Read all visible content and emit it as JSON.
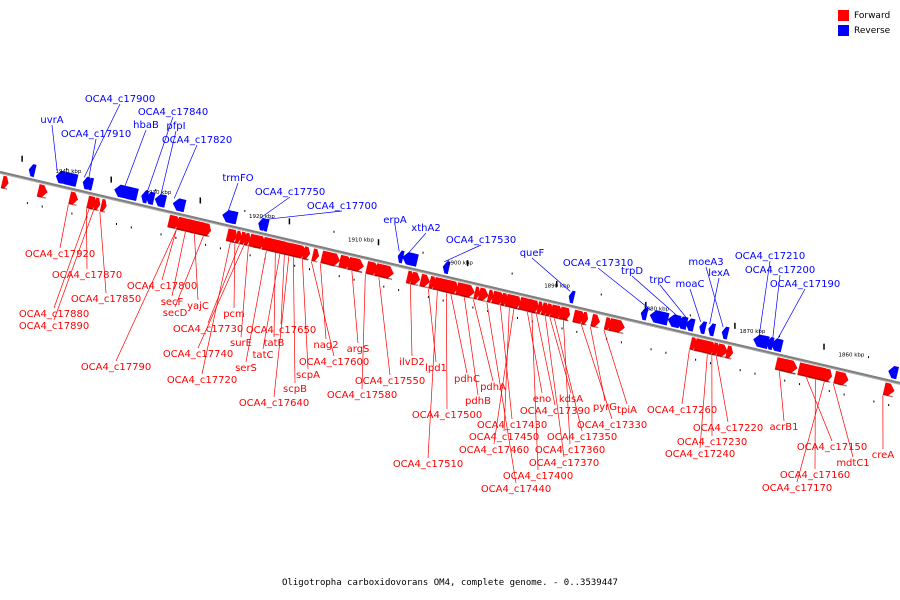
{
  "caption": "Oligotropha carboxidovorans OM4, complete genome. - 0..3539447",
  "legend": [
    {
      "label": "Forward",
      "color": "#ff0000"
    },
    {
      "label": "Reverse",
      "color": "#0000ff"
    }
  ],
  "colors": {
    "forward": "#ff0000",
    "reverse": "#0000ff",
    "backbone": "#7f7f7f",
    "tick": "#000000"
  },
  "kbp_ticks": [
    "1940 kbp",
    "1930 kbp",
    "1920 kbp",
    "1910 kbp",
    "1900 kbp",
    "1890 kbp",
    "1880 kbp",
    "1870 kbp",
    "1860 kbp"
  ],
  "reverse_genes": [
    "uvrA",
    "OCA4_c17900",
    "OCA4_c17910",
    "hbaB",
    "OCA4_c17840",
    "pfpI",
    "OCA4_c17820",
    "trmFO",
    "OCA4_c17750",
    "OCA4_c17700",
    "erpA",
    "xthA2",
    "OCA4_c17530",
    "queF",
    "OCA4_c17310",
    "trpD",
    "trpC",
    "moaC",
    "moeA3",
    "lexA",
    "OCA4_c17210",
    "OCA4_c17200",
    "OCA4_c17190"
  ],
  "forward_genes": [
    "OCA4_c17920",
    "OCA4_c17870",
    "OCA4_c17850",
    "OCA4_c17880",
    "OCA4_c17890",
    "OCA4_c17800",
    "secF",
    "yajC",
    "secD",
    "pcm",
    "OCA4_c17730",
    "OCA4_c17650",
    "OCA4_c17740",
    "surE",
    "tatB",
    "OCA4_c17790",
    "tatC",
    "serS",
    "OCA4_c17720",
    "scpB",
    "scpA",
    "nag2",
    "argS",
    "OCA4_c17600",
    "OCA4_c17640",
    "OCA4_c17550",
    "OCA4_c17580",
    "ilvD2",
    "lpd1",
    "pdhC",
    "pdhA",
    "pdhB",
    "eno",
    "kdsA",
    "pyrG",
    "tpiA",
    "OCA4_c17500",
    "OCA4_c17390",
    "OCA4_c17430",
    "OCA4_c17330",
    "OCA4_c17450",
    "OCA4_c17350",
    "OCA4_c17460",
    "OCA4_c17360",
    "OCA4_c17510",
    "OCA4_c17370",
    "OCA4_c17400",
    "OCA4_c17440",
    "OCA4_c17260",
    "OCA4_c17220",
    "OCA4_c17230",
    "OCA4_c17240",
    "acrB1",
    "OCA4_c17150",
    "mdtC1",
    "creA",
    "OCA4_c17160",
    "OCA4_c17170"
  ]
}
